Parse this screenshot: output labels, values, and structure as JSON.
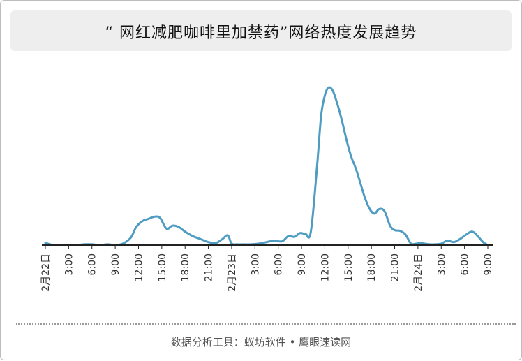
{
  "title": "“ 网红减肥咖啡里加禁药”网络热度发展趋势",
  "footer": "数据分析工具：蚁坊软件 • 鹰眼速读网",
  "colors": {
    "line": "#4e9cc1",
    "axis": "#222222",
    "tick_text": "#333333"
  },
  "chart_data": {
    "type": "line",
    "title": "“ 网红减肥咖啡里加禁药”网络热度发展趋势",
    "xlabel": "",
    "ylabel": "",
    "grid": false,
    "x_tick_labels": [
      "2月22日",
      "3:00",
      "6:00",
      "9:00",
      "12:00",
      "15:00",
      "18:00",
      "21:00",
      "2月23日",
      "3:00",
      "6:00",
      "9:00",
      "12:00",
      "15:00",
      "18:00",
      "21:00",
      "2月24日",
      "3:00",
      "6:00",
      "9:00"
    ],
    "x_tick_hours": [
      0,
      3,
      6,
      9,
      12,
      15,
      18,
      21,
      24,
      27,
      30,
      33,
      36,
      39,
      42,
      45,
      48,
      51,
      54,
      57
    ],
    "series": [
      {
        "name": "",
        "x_hours": [
          0,
          1,
          2,
          3,
          4,
          5,
          6,
          7,
          8,
          9,
          10,
          11,
          11.7,
          12.5,
          13.3,
          14.1,
          14.8,
          15.6,
          16.4,
          17.2,
          18,
          19,
          20,
          21,
          22,
          22.8,
          23.5,
          24,
          24.7,
          25.5,
          26.5,
          27.5,
          28.5,
          29.5,
          30.5,
          31.3,
          32.1,
          32.8,
          33.5,
          34.2,
          35,
          35.5,
          35.9,
          36.3,
          36.7,
          37.1,
          37.5,
          37.9,
          38.3,
          38.8,
          39.4,
          40,
          40.6,
          41.2,
          41.8,
          42.4,
          43,
          43.7,
          44.4,
          45,
          45.7,
          46.4,
          47.1,
          47.8,
          48.3,
          48.8,
          49.5,
          50.2,
          51,
          51.8,
          52.6,
          53.4,
          54.2,
          55,
          55.7,
          56.4,
          57
        ],
        "values": [
          3,
          0,
          0,
          0,
          0,
          1,
          1,
          0,
          1,
          0,
          2,
          10,
          24,
          32,
          35,
          38,
          36,
          22,
          26,
          24,
          18,
          12,
          8,
          4,
          3,
          8,
          13,
          2,
          1,
          1,
          1,
          2,
          4,
          6,
          5,
          12,
          11,
          16,
          15,
          18,
          105,
          170,
          195,
          208,
          210,
          204,
          192,
          178,
          162,
          140,
          118,
          102,
          82,
          62,
          48,
          42,
          48,
          45,
          26,
          20,
          19,
          14,
          2,
          2,
          3,
          2,
          1,
          1,
          2,
          6,
          4,
          8,
          14,
          18,
          12,
          4,
          0
        ]
      }
    ],
    "xlim": [
      0,
      57
    ],
    "ylim": [
      0,
      215
    ]
  }
}
